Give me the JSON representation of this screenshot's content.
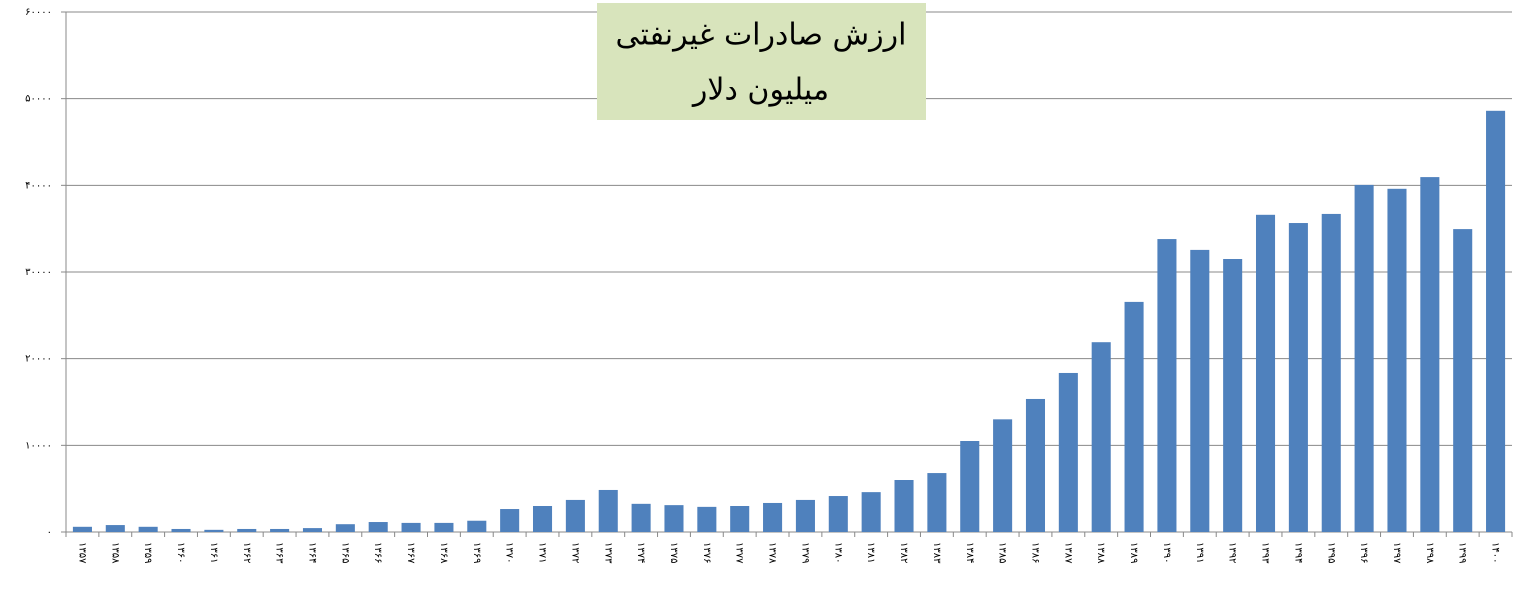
{
  "chart_data": {
    "type": "bar",
    "title": "ارزش صادرات غیرنفتی",
    "subtitle": "میلیون دلار",
    "categories": [
      "۱۳۵۷",
      "۱۳۵۸",
      "۱۳۵۹",
      "۱۳۶۰",
      "۱۳۶۱",
      "۱۳۶۲",
      "۱۳۶۳",
      "۱۳۶۴",
      "۱۳۶۵",
      "۱۳۶۶",
      "۱۳۶۷",
      "۱۳۶۸",
      "۱۳۶۹",
      "۱۳۷۰",
      "۱۳۷۱",
      "۱۳۷۲",
      "۱۳۷۳",
      "۱۳۷۴",
      "۱۳۷۵",
      "۱۳۷۶",
      "۱۳۷۷",
      "۱۳۷۸",
      "۱۳۷۹",
      "۱۳۸۰",
      "۱۳۸۱",
      "۱۳۸۲",
      "۱۳۸۳",
      "۱۳۸۴",
      "۱۳۸۵",
      "۱۳۸۶",
      "۱۳۸۷",
      "۱۳۸۸",
      "۱۳۸۹",
      "۱۳۹۰",
      "۱۳۹۱",
      "۱۳۹۲",
      "۱۳۹۳",
      "۱۳۹۴",
      "۱۳۹۵",
      "۱۳۹۶",
      "۱۳۹۷",
      "۱۳۹۸",
      "۱۳۹۹",
      "۱۴۰۰"
    ],
    "values": [
      600,
      800,
      600,
      350,
      250,
      350,
      350,
      450,
      900,
      1150,
      1050,
      1050,
      1300,
      2650,
      3000,
      3700,
      4850,
      3250,
      3100,
      2900,
      3000,
      3350,
      3700,
      4150,
      4600,
      6000,
      6800,
      10500,
      13000,
      15350,
      18350,
      21900,
      26550,
      33800,
      32550,
      31500,
      36600,
      35650,
      36700,
      40050,
      39600,
      40950,
      34950,
      48600
    ],
    "color": "#4f81bd",
    "ylim": [
      0,
      60000
    ],
    "yticks": [
      {
        "value": 0,
        "label": "۰"
      },
      {
        "value": 10000,
        "label": "۱۰۰۰۰"
      },
      {
        "value": 20000,
        "label": "۲۰۰۰۰"
      },
      {
        "value": 30000,
        "label": "۳۰۰۰۰"
      },
      {
        "value": 40000,
        "label": "۴۰۰۰۰"
      },
      {
        "value": 50000,
        "label": "۵۰۰۰۰"
      },
      {
        "value": 60000,
        "label": "۶۰۰۰۰"
      }
    ],
    "grid": true
  }
}
